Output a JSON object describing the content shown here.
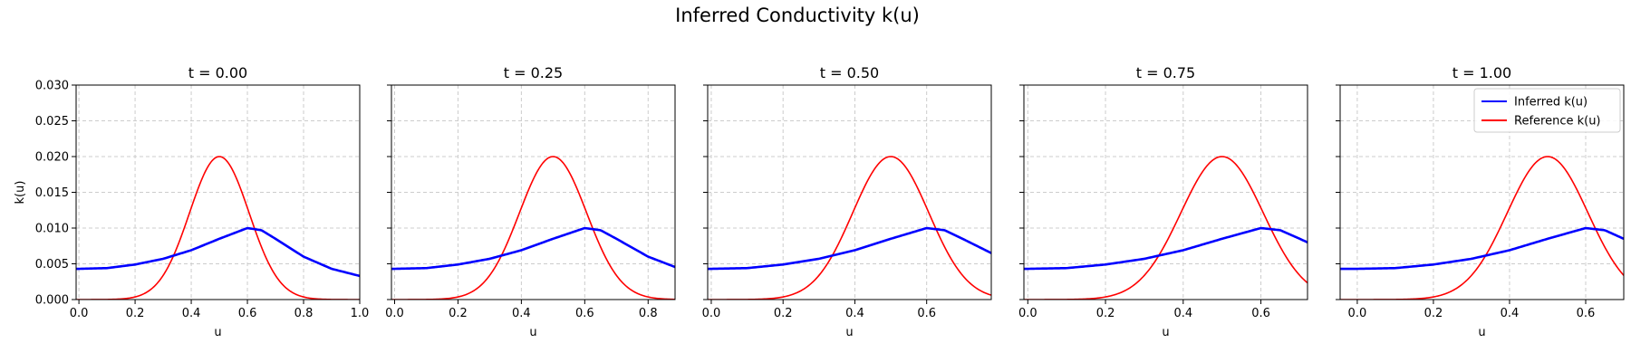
{
  "chart_data": {
    "type": "line",
    "suptitle": "Inferred Conductivity k(u)",
    "ylabel": "k(u)",
    "xlabel": "u",
    "ylim": [
      0,
      0.03
    ],
    "yticks": [
      0,
      0.005,
      0.01,
      0.015,
      0.02,
      0.025,
      0.03
    ],
    "ytick_labels": [
      "0.000",
      "0.005",
      "0.010",
      "0.015",
      "0.020",
      "0.025",
      "0.030"
    ],
    "grid": true,
    "legend": {
      "location": "top-right",
      "panel": 4,
      "entries": [
        "Inferred k(u)",
        "Reference k(u)"
      ]
    },
    "colors": {
      "inferred": "#0000ff",
      "reference": "#ff0000"
    },
    "panels": [
      {
        "title": "t = 0.00",
        "xlim": [
          -0.01,
          1.0
        ],
        "xticks": [
          0,
          0.2,
          0.4,
          0.6,
          0.8,
          1.0
        ],
        "xtick_labels": [
          "0.0",
          "0.2",
          "0.4",
          "0.6",
          "0.8",
          "1.0"
        ]
      },
      {
        "title": "t = 0.25",
        "xlim": [
          -0.01,
          0.885
        ],
        "xticks": [
          0,
          0.2,
          0.4,
          0.6,
          0.8
        ],
        "xtick_labels": [
          "0.0",
          "0.2",
          "0.4",
          "0.6",
          "0.8"
        ]
      },
      {
        "title": "t = 0.50",
        "xlim": [
          -0.01,
          0.78
        ],
        "xticks": [
          0,
          0.2,
          0.4,
          0.6
        ],
        "xtick_labels": [
          "0.0",
          "0.2",
          "0.4",
          "0.6"
        ]
      },
      {
        "title": "t = 0.75",
        "xlim": [
          -0.01,
          0.72
        ],
        "xticks": [
          0,
          0.2,
          0.4,
          0.6
        ],
        "xtick_labels": [
          "0.0",
          "0.2",
          "0.4",
          "0.6"
        ]
      },
      {
        "title": "t = 1.00",
        "xlim": [
          -0.045,
          0.7
        ],
        "xticks": [
          0,
          0.2,
          0.4,
          0.6
        ],
        "xtick_labels": [
          "0.0",
          "0.2",
          "0.4",
          "0.6"
        ]
      }
    ],
    "series": [
      {
        "name": "Inferred k(u)",
        "x": [
          0,
          0.1,
          0.2,
          0.3,
          0.4,
          0.5,
          0.6,
          0.65,
          0.7,
          0.8,
          0.9,
          1.0
        ],
        "y": [
          0.0043,
          0.0044,
          0.0049,
          0.0057,
          0.0069,
          0.0085,
          0.01,
          0.0097,
          0.0085,
          0.006,
          0.0043,
          0.0033
        ]
      },
      {
        "name": "Reference k(u)",
        "formula": "0.02*exp(-((u-0.5)/0.15)^2)",
        "center": 0.5,
        "width": 0.15,
        "peak": 0.02
      }
    ]
  }
}
